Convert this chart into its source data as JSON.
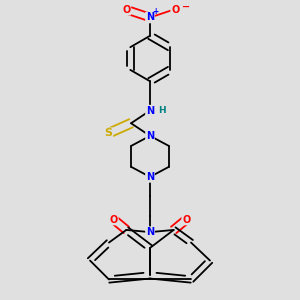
{
  "background_color": "#e0e0e0",
  "bond_color": "#000000",
  "atom_colors": {
    "N": "#0000ff",
    "O": "#ff0000",
    "S": "#ccaa00",
    "H": "#008080",
    "C": "#000000"
  },
  "figsize": [
    3.0,
    3.0
  ],
  "dpi": 100
}
